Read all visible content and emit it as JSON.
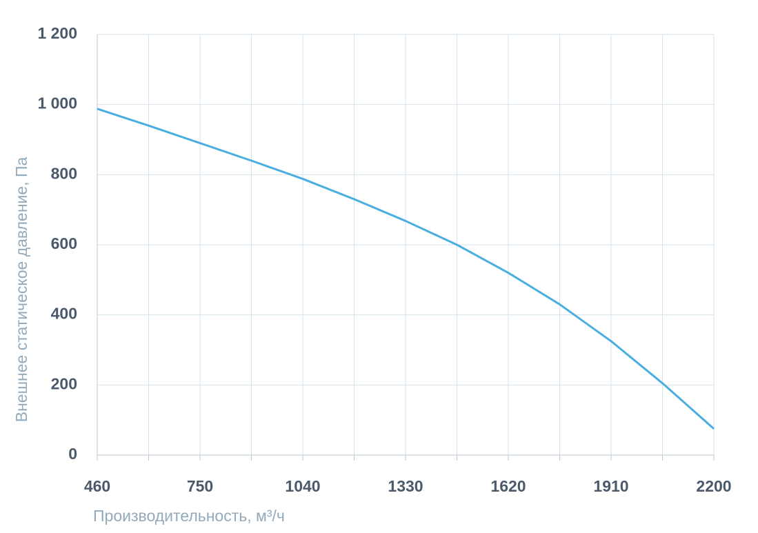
{
  "chart_data": {
    "type": "line",
    "xlabel": "Производительность, м³/ч",
    "ylabel": "Внешнее статическое давление, Па",
    "x": [
      460,
      605,
      750,
      895,
      1040,
      1185,
      1330,
      1475,
      1620,
      1765,
      1910,
      2055,
      2200
    ],
    "series": [
      {
        "color": "#4aaee0",
        "values": [
          988,
          940,
          890,
          840,
          788,
          730,
          668,
          600,
          520,
          430,
          325,
          205,
          75
        ]
      }
    ],
    "xlim": [
      460,
      2200
    ],
    "xticks": [
      460,
      750,
      1040,
      1330,
      1620,
      1910,
      2200
    ],
    "x_minor_ticks": [
      605,
      895,
      1185,
      1475,
      1765,
      2055
    ],
    "ylim": [
      0,
      1200
    ],
    "yticks": [
      0,
      200,
      400,
      600,
      800,
      {
        "value": 1000,
        "label": "1 000"
      },
      {
        "value": 1200,
        "label": "1 200"
      }
    ],
    "grid": true
  }
}
